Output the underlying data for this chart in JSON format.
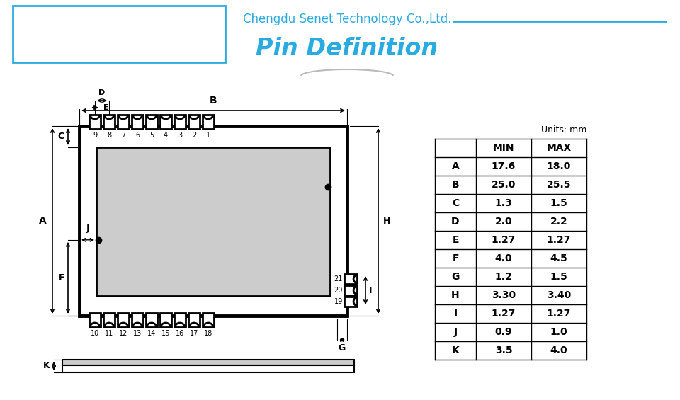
{
  "title_company": "Chengdu Senet Technology Co.,Ltd.",
  "title_main": "Pin Definition",
  "title_color": "#29ABE2",
  "bg_color": "#FFFFFF",
  "table_data": {
    "headers": [
      "",
      "MIN",
      "MAX"
    ],
    "rows": [
      [
        "A",
        "17.6",
        "18.0"
      ],
      [
        "B",
        "25.0",
        "25.5"
      ],
      [
        "C",
        "1.3",
        "1.5"
      ],
      [
        "D",
        "2.0",
        "2.2"
      ],
      [
        "E",
        "1.27",
        "1.27"
      ],
      [
        "F",
        "4.0",
        "4.5"
      ],
      [
        "G",
        "1.2",
        "1.5"
      ],
      [
        "H",
        "3.30",
        "3.40"
      ],
      [
        "I",
        "1.27",
        "1.27"
      ],
      [
        "J",
        "0.9",
        "1.0"
      ],
      [
        "K",
        "3.5",
        "4.0"
      ]
    ]
  },
  "module_color": "#CCCCCC",
  "module_border": "#000000"
}
